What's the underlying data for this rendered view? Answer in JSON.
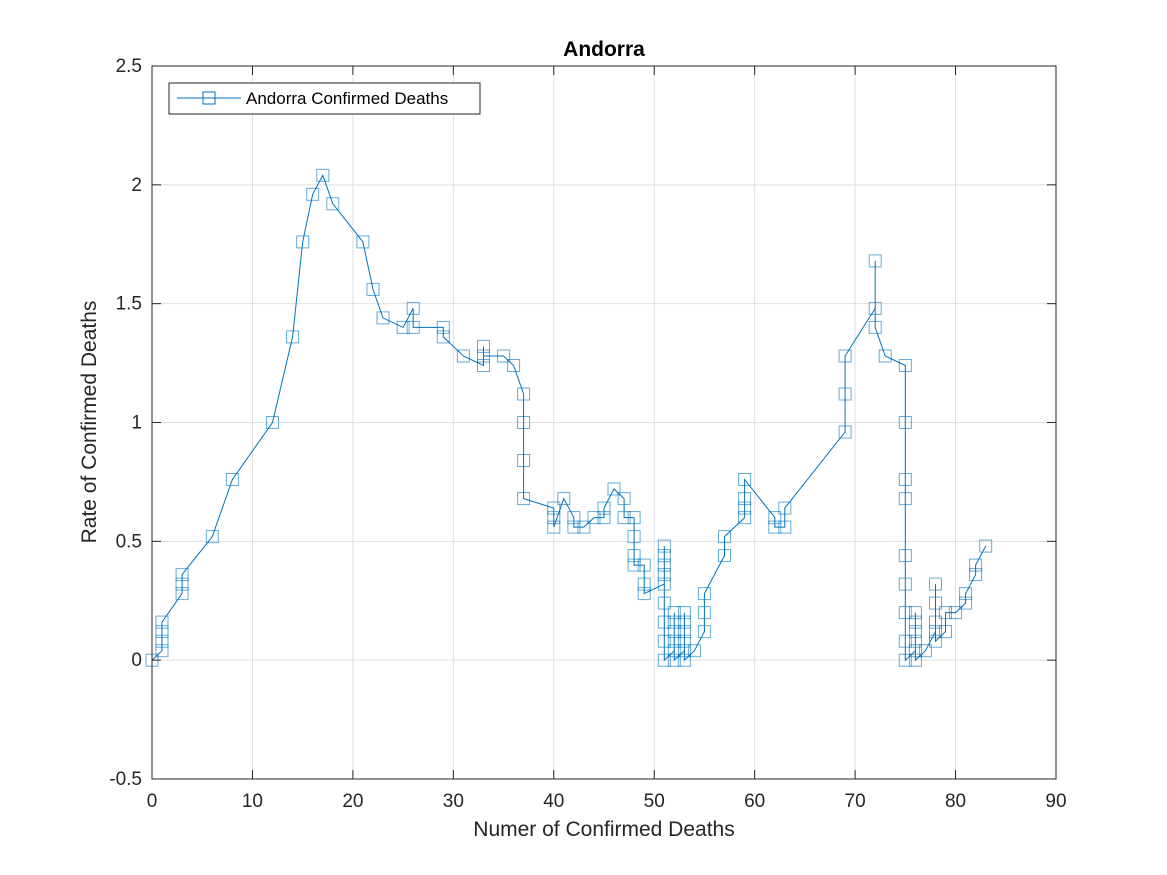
{
  "chart_data": {
    "type": "line",
    "title": "Andorra",
    "xlabel": "Numer of Confirmed Deaths",
    "ylabel": "Rate of Confirmed Deaths",
    "xlim": [
      0,
      90
    ],
    "ylim": [
      -0.5,
      2.5
    ],
    "x_ticks": [
      "0",
      "10",
      "20",
      "30",
      "40",
      "50",
      "60",
      "70",
      "80",
      "90"
    ],
    "y_ticks": [
      "-0.5",
      "0",
      "0.5",
      "1",
      "1.5",
      "2",
      "2.5"
    ],
    "grid": true,
    "legend_position": "top-left",
    "marker": "square",
    "series": [
      {
        "name": "Andorra Confirmed Deaths",
        "color": "#0072bd",
        "points": [
          [
            0,
            0
          ],
          [
            1,
            0.04
          ],
          [
            1,
            0.08
          ],
          [
            1,
            0.12
          ],
          [
            1,
            0.16
          ],
          [
            3,
            0.28
          ],
          [
            3,
            0.32
          ],
          [
            3,
            0.36
          ],
          [
            6,
            0.52
          ],
          [
            8,
            0.76
          ],
          [
            12,
            1.0
          ],
          [
            14,
            1.36
          ],
          [
            15,
            1.76
          ],
          [
            16,
            1.96
          ],
          [
            17,
            2.04
          ],
          [
            18,
            1.92
          ],
          [
            21,
            1.76
          ],
          [
            22,
            1.56
          ],
          [
            23,
            1.44
          ],
          [
            25,
            1.4
          ],
          [
            26,
            1.48
          ],
          [
            26,
            1.4
          ],
          [
            29,
            1.4
          ],
          [
            29,
            1.36
          ],
          [
            31,
            1.28
          ],
          [
            33,
            1.24
          ],
          [
            33,
            1.32
          ],
          [
            33,
            1.28
          ],
          [
            35,
            1.28
          ],
          [
            36,
            1.24
          ],
          [
            37,
            1.12
          ],
          [
            37,
            1.0
          ],
          [
            37,
            0.84
          ],
          [
            37,
            0.68
          ],
          [
            40,
            0.64
          ],
          [
            40,
            0.6
          ],
          [
            40,
            0.56
          ],
          [
            41,
            0.68
          ],
          [
            42,
            0.6
          ],
          [
            42,
            0.56
          ],
          [
            43,
            0.56
          ],
          [
            44,
            0.6
          ],
          [
            45,
            0.6
          ],
          [
            45,
            0.64
          ],
          [
            46,
            0.72
          ],
          [
            47,
            0.68
          ],
          [
            47,
            0.6
          ],
          [
            48,
            0.6
          ],
          [
            48,
            0.52
          ],
          [
            48,
            0.44
          ],
          [
            48,
            0.4
          ],
          [
            49,
            0.4
          ],
          [
            49,
            0.32
          ],
          [
            49,
            0.28
          ],
          [
            51,
            0.32
          ],
          [
            51,
            0.48
          ],
          [
            51,
            0.44
          ],
          [
            51,
            0.4
          ],
          [
            51,
            0.36
          ],
          [
            51,
            0.24
          ],
          [
            51,
            0.16
          ],
          [
            51,
            0.08
          ],
          [
            51,
            0.0
          ],
          [
            52,
            0.04
          ],
          [
            52,
            0.2
          ],
          [
            52,
            0.16
          ],
          [
            52,
            0.12
          ],
          [
            52,
            0.08
          ],
          [
            52,
            0.0
          ],
          [
            53,
            0.04
          ],
          [
            53,
            0.2
          ],
          [
            53,
            0.16
          ],
          [
            53,
            0.12
          ],
          [
            53,
            0.08
          ],
          [
            53,
            0.0
          ],
          [
            54,
            0.04
          ],
          [
            55,
            0.12
          ],
          [
            55,
            0.2
          ],
          [
            55,
            0.28
          ],
          [
            57,
            0.44
          ],
          [
            57,
            0.52
          ],
          [
            59,
            0.6
          ],
          [
            59,
            0.64
          ],
          [
            59,
            0.68
          ],
          [
            59,
            0.76
          ],
          [
            62,
            0.6
          ],
          [
            62,
            0.56
          ],
          [
            63,
            0.56
          ],
          [
            63,
            0.64
          ],
          [
            69,
            0.96
          ],
          [
            69,
            1.12
          ],
          [
            69,
            1.28
          ],
          [
            72,
            1.48
          ],
          [
            72,
            1.68
          ],
          [
            72,
            1.4
          ],
          [
            73,
            1.28
          ],
          [
            75,
            1.24
          ],
          [
            75,
            1.0
          ],
          [
            75,
            0.76
          ],
          [
            75,
            0.68
          ],
          [
            75,
            0.44
          ],
          [
            75,
            0.32
          ],
          [
            75,
            0.2
          ],
          [
            75,
            0.08
          ],
          [
            75,
            0.0
          ],
          [
            76,
            0.04
          ],
          [
            76,
            0.2
          ],
          [
            76,
            0.16
          ],
          [
            76,
            0.12
          ],
          [
            76,
            0.08
          ],
          [
            76,
            0.0
          ],
          [
            77,
            0.04
          ],
          [
            78,
            0.12
          ],
          [
            78,
            0.32
          ],
          [
            78,
            0.24
          ],
          [
            78,
            0.16
          ],
          [
            78,
            0.08
          ],
          [
            79,
            0.12
          ],
          [
            79,
            0.2
          ],
          [
            80,
            0.2
          ],
          [
            81,
            0.24
          ],
          [
            81,
            0.28
          ],
          [
            82,
            0.36
          ],
          [
            82,
            0.4
          ],
          [
            83,
            0.48
          ]
        ]
      }
    ]
  }
}
